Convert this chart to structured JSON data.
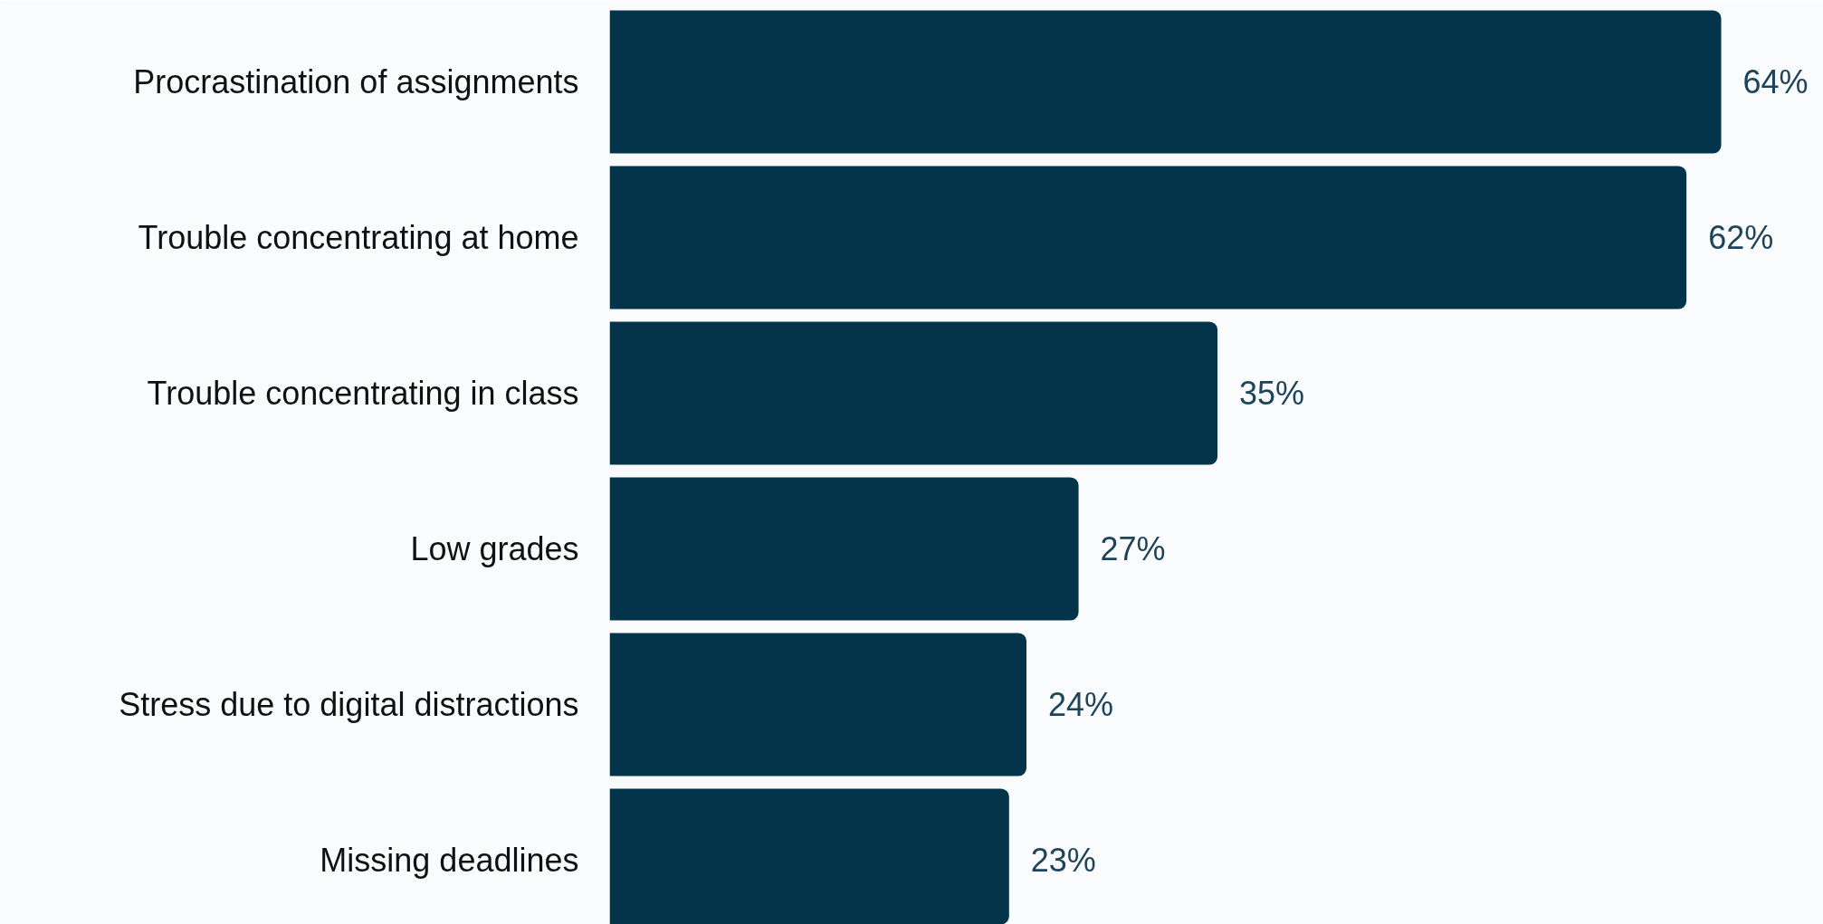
{
  "chart_data": {
    "type": "bar",
    "orientation": "horizontal",
    "categories": [
      "Procrastination of assignments",
      "Trouble concentrating at home",
      "Trouble concentrating in class",
      "Low grades",
      "Stress due to digital distractions",
      "Missing deadlines"
    ],
    "values": [
      64,
      62,
      35,
      27,
      24,
      23
    ],
    "value_labels": [
      "64%",
      "62%",
      "35%",
      "27%",
      "24%",
      "23%"
    ],
    "color": "#03344a",
    "grid": false
  }
}
